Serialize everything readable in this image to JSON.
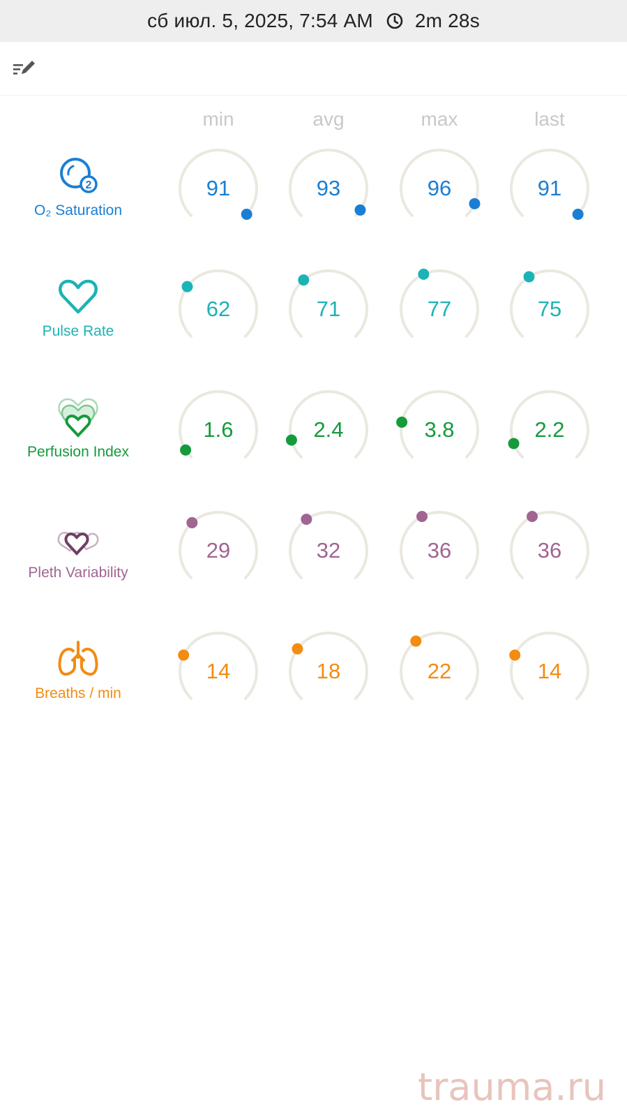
{
  "header": {
    "datetime": "сб июл. 5, 2025, 7:54 AM",
    "duration": "2m 28s"
  },
  "toolbar": {
    "edit_icon": "edit-list-icon"
  },
  "columns": [
    "min",
    "avg",
    "max",
    "last"
  ],
  "gauge_scale": {
    "arc_span_deg": 270,
    "start_at": "bottom-left",
    "track_color": "#ebe8e0"
  },
  "rows": [
    {
      "label": "O₂ Saturation",
      "icon": "o2-saturation-icon",
      "color": "#1a7fd4",
      "values": [
        "91",
        "93",
        "96",
        "91"
      ],
      "levels": [
        0.99,
        0.96,
        0.92,
        0.99
      ]
    },
    {
      "label": "Pulse Rate",
      "icon": "heart-icon",
      "color": "#1cb3b5",
      "values": [
        "62",
        "71",
        "77",
        "75"
      ],
      "levels": [
        0.3,
        0.35,
        0.41,
        0.38
      ]
    },
    {
      "label": "Perfusion Index",
      "icon": "perfusion-icon",
      "color": "#159a3c",
      "values": [
        "1.6",
        "2.4",
        "3.8",
        "2.2"
      ],
      "levels": [
        0.05,
        0.11,
        0.21,
        0.09
      ]
    },
    {
      "label": "Pleth Variability",
      "icon": "pleth-variability-icon",
      "color": "#a06592",
      "values": [
        "29",
        "32",
        "36",
        "36"
      ],
      "levels": [
        0.34,
        0.37,
        0.4,
        0.4
      ]
    },
    {
      "label": "Breaths / min",
      "icon": "lungs-icon",
      "color": "#f28c12",
      "values": [
        "14",
        "18",
        "22",
        "14"
      ],
      "levels": [
        0.26,
        0.3,
        0.36,
        0.26
      ]
    }
  ],
  "watermark": "trauma.ru"
}
